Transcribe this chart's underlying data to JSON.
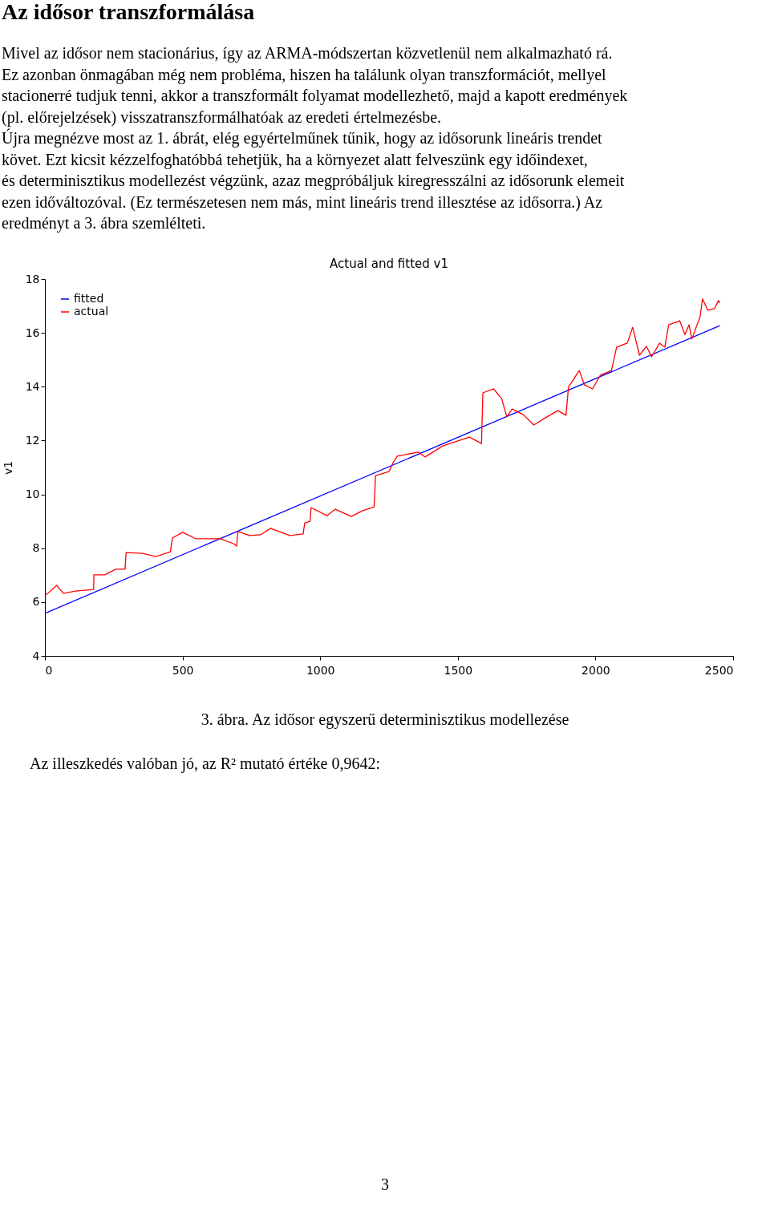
{
  "chart_data": {
    "type": "line",
    "title": "Actual and fitted v1",
    "ylabel": "v1",
    "xlim": [
      0,
      2500
    ],
    "xticks": [
      0,
      500,
      1000,
      1500,
      2000,
      2500
    ],
    "ylim": [
      4,
      18
    ],
    "yticks": [
      4,
      6,
      8,
      10,
      12,
      14,
      16,
      18
    ],
    "grid": false,
    "legend": "top left",
    "marker": "none",
    "line_style": "solid",
    "series": [
      {
        "name": "fitted",
        "color": "#0000ff",
        "x": [
          0,
          2452
        ],
        "values": [
          5.58,
          16.27
        ]
      },
      {
        "name": "actual",
        "color": "#ff0000",
        "x": [
          0,
          43,
          67,
          111,
          177,
          178,
          218,
          257,
          291,
          295,
          354,
          403,
          456,
          463,
          500,
          549,
          637,
          685,
          697,
          700,
          744,
          783,
          821,
          827,
          890,
          938,
          944,
          963,
          967,
          1025,
          1055,
          1113,
          1153,
          1196,
          1201,
          1250,
          1265,
          1280,
          1357,
          1381,
          1445,
          1542,
          1586,
          1591,
          1630,
          1659,
          1678,
          1697,
          1737,
          1776,
          1814,
          1863,
          1893,
          1902,
          1941,
          1960,
          1989,
          2018,
          2058,
          2077,
          2116,
          2135,
          2160,
          2185,
          2204,
          2233,
          2252,
          2266,
          2306,
          2325,
          2340,
          2350,
          2380,
          2389,
          2408,
          2432,
          2447,
          2452
        ],
        "values": [
          6.23,
          6.62,
          6.32,
          6.41,
          6.47,
          7.01,
          7.01,
          7.22,
          7.22,
          7.84,
          7.81,
          7.69,
          7.87,
          8.38,
          8.59,
          8.35,
          8.35,
          8.17,
          8.08,
          8.62,
          8.47,
          8.5,
          8.74,
          8.71,
          8.47,
          8.53,
          8.94,
          9.0,
          9.51,
          9.21,
          9.45,
          9.18,
          9.39,
          9.54,
          10.7,
          10.85,
          11.18,
          11.42,
          11.57,
          11.39,
          11.8,
          12.13,
          11.89,
          13.77,
          13.92,
          13.56,
          12.88,
          13.17,
          12.97,
          12.58,
          12.82,
          13.11,
          12.94,
          13.98,
          14.6,
          14.07,
          13.92,
          14.43,
          14.6,
          15.47,
          15.62,
          16.21,
          15.17,
          15.5,
          15.11,
          15.62,
          15.47,
          16.3,
          16.45,
          15.94,
          16.3,
          15.77,
          16.6,
          17.26,
          16.84,
          16.9,
          17.2,
          17.11
        ]
      }
    ],
    "annotations": [
      "Az idősor transzformálása",
      "Mivel az idősor nem stacionárius, így az ARMA-módszertan közvetlenül nem alkalmazható rá.",
      "Ez azonban önmagában még nem probléma, hiszen ha találunk olyan transzformációt, mellyel",
      "stacionerré tudjuk tenni, akkor a transzformált folyamat modellezhető, majd a kapott eredmények",
      "(pl. előrejelzések) visszatranszformálhatóak az eredeti értelmezésbe.",
      "Újra megnézve most az 1. ábrát, elég egyértelműnek tűnik, hogy az idősorunk lineáris trendet",
      "követ. Ezt kicsit kézzelfoghatóbbá tehetjük, ha a környezet alatt felveszünk egy időindexet,",
      "és determinisztikus modellezést végzünk, azaz megpróbáljuk kiregresszálni az idősorunk elemeit",
      "ezen időváltozóval. (Ez természetesen nem más, mint lineáris trend illesztése az idősorra.) Az",
      "eredményt a 3. ábra szemlélteti.",
      "3. ábra. Az idősor egyszerű determinisztikus modellezése",
      "Az illeszkedés valóban jó, az R² mutató értéke 0,9642:",
      "3"
    ]
  }
}
